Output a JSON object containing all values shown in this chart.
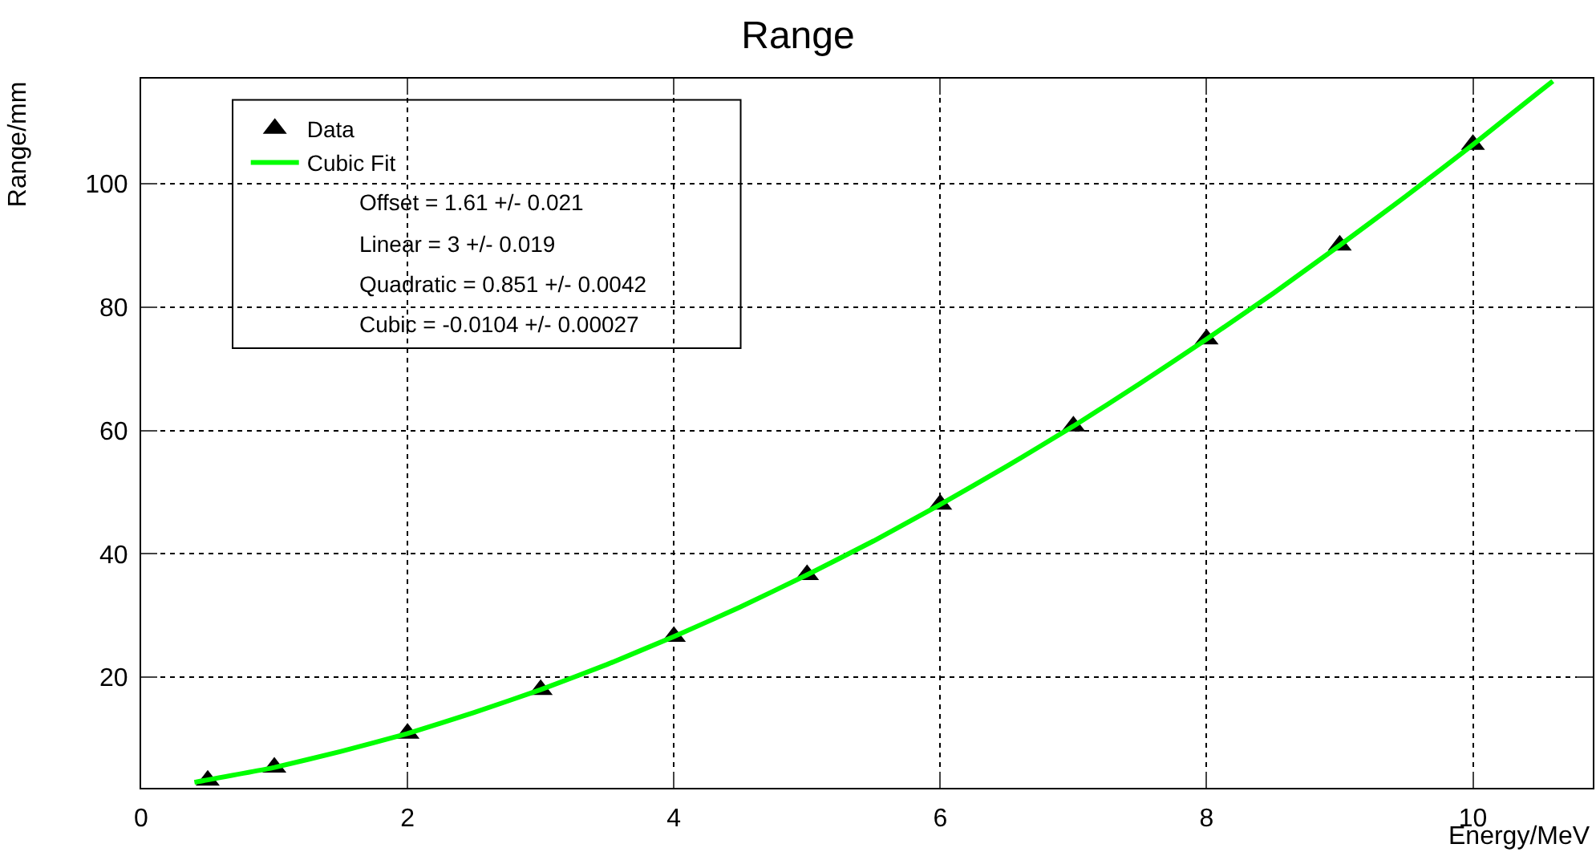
{
  "chart_data": {
    "type": "scatter",
    "title": "Range",
    "xlabel": "Energy/MeV",
    "ylabel": "Range/mm",
    "xlim": [
      0,
      10.9
    ],
    "xticks": [
      0,
      2,
      4,
      6,
      8,
      10
    ],
    "ylim": [
      2.1,
      117
    ],
    "yticks": [
      20,
      40,
      60,
      80,
      100
    ],
    "grid": true,
    "legend": "top left",
    "series": [
      {
        "name": "Data",
        "color": "#000000",
        "marker": "triangle",
        "x": [
          0.5,
          1,
          2,
          3,
          4,
          5,
          6,
          7,
          8,
          9,
          10
        ],
        "values": [
          3.3,
          5.4,
          10.9,
          18.0,
          26.6,
          36.6,
          48.0,
          60.7,
          74.8,
          90.0,
          106.3
        ]
      },
      {
        "name": "Cubic Fit",
        "type": "line",
        "color": "#00ff00",
        "x": [
          0.4,
          1,
          1.5,
          2,
          2.5,
          3,
          3.5,
          4,
          4.5,
          5,
          5.5,
          6,
          6.5,
          7,
          7.5,
          8,
          8.5,
          9,
          9.5,
          10,
          10.5,
          10.6
        ],
        "values": [
          3.0,
          5.4,
          8.0,
          10.9,
          14.3,
          18.0,
          22.1,
          26.6,
          31.4,
          36.6,
          42.1,
          48.0,
          54.2,
          60.7,
          67.6,
          74.8,
          82.2,
          90.0,
          98.0,
          106.3,
          114.9,
          116.6
        ]
      }
    ],
    "annotations": [
      "Offset = 1.61 +/- 0.021",
      "Linear = 3 +/- 0.019",
      "Quadratic = 0.851 +/- 0.0042",
      "Cubic = -0.0104 +/- 0.00027"
    ]
  }
}
